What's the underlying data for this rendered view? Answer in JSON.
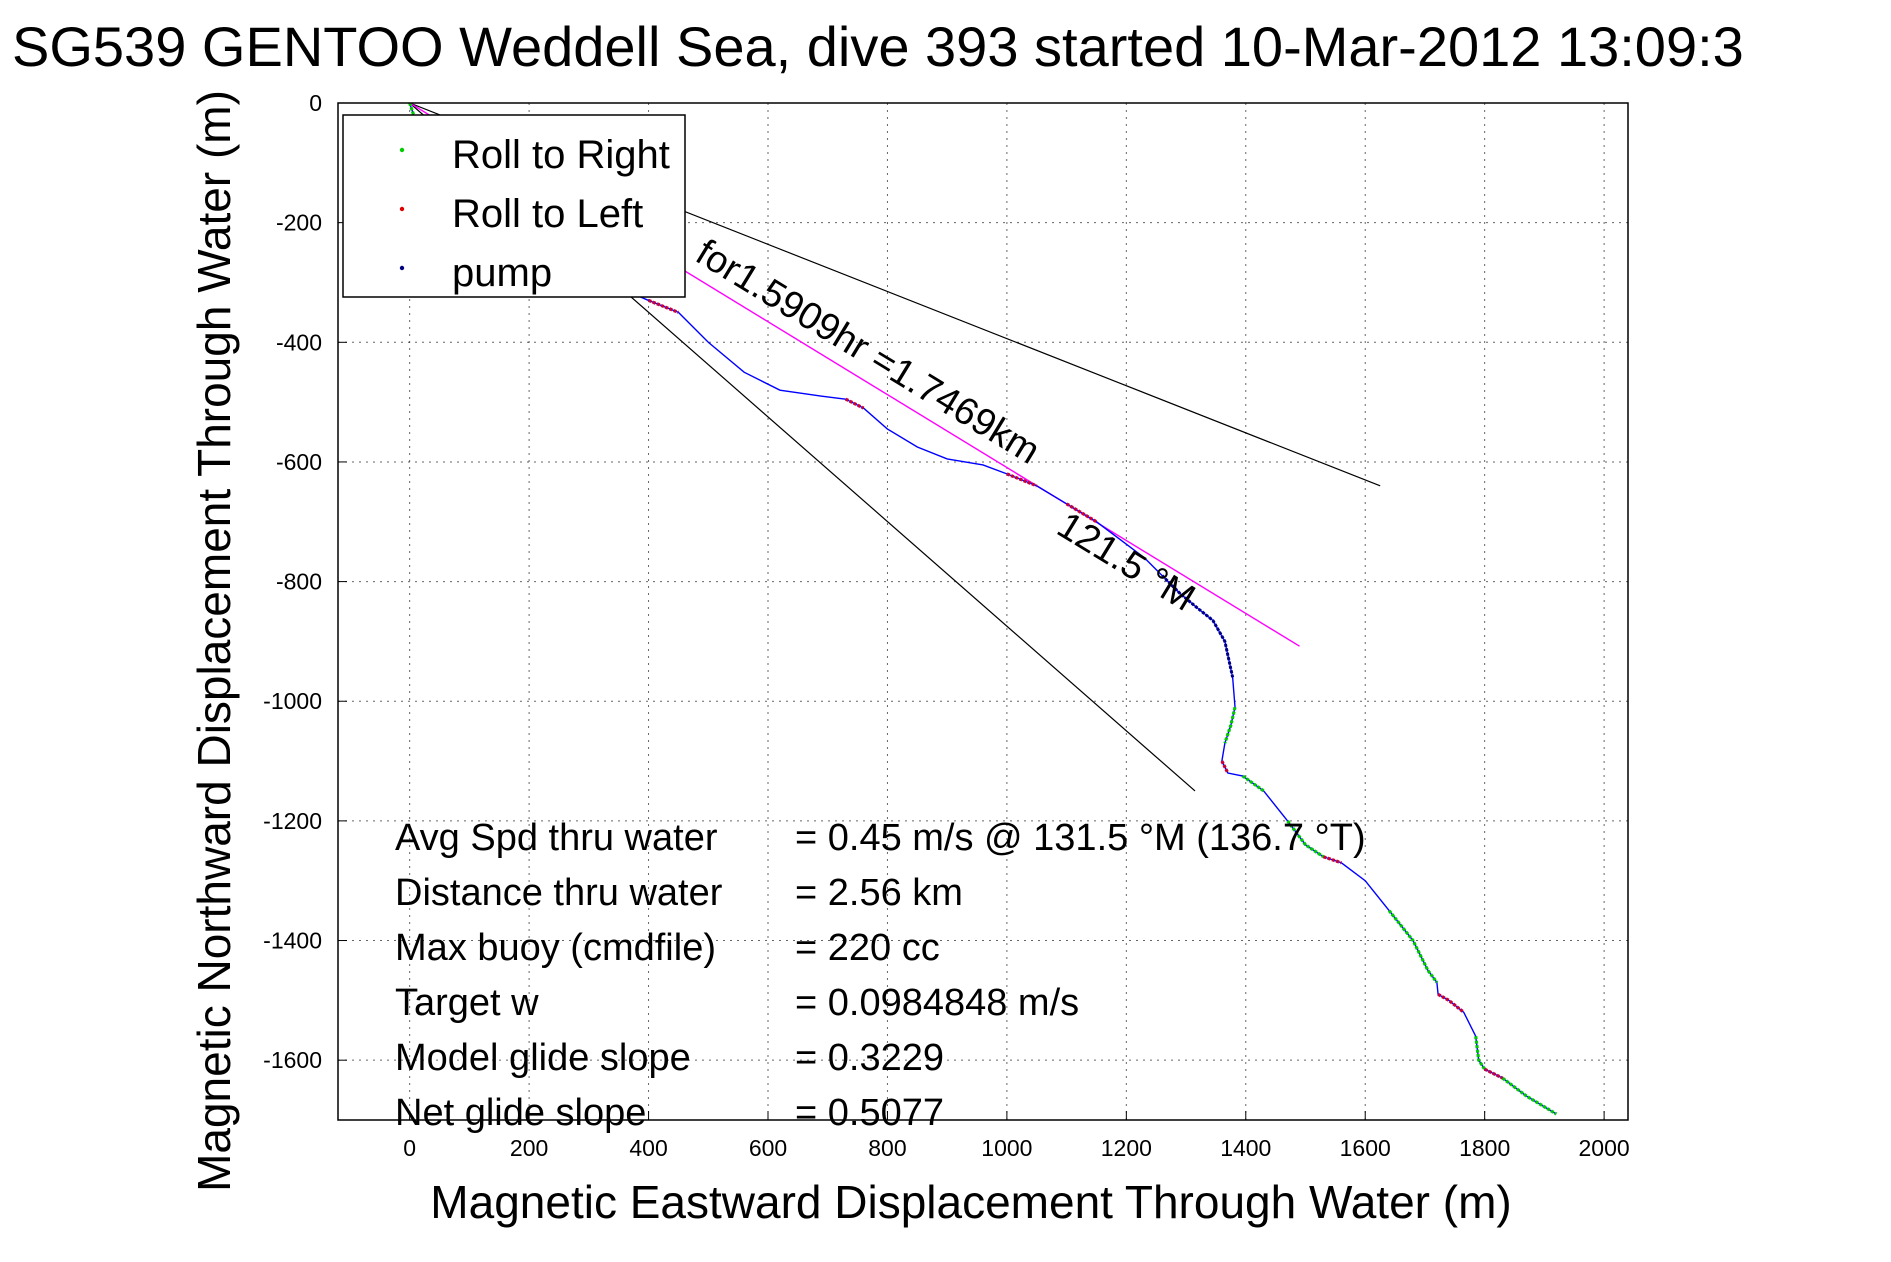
{
  "chart_data": {
    "type": "line",
    "title": "SG539 GENTOO Weddell Sea, dive 393 started 10-Mar-2012 13:09:3",
    "xlabel": "Magnetic Eastward Displacement Through Water (m)",
    "ylabel": "Magnetic Northward Displacement Through Water (m)",
    "xlim": [
      -120,
      2040
    ],
    "ylim": [
      -1700,
      0
    ],
    "xticks": [
      0,
      200,
      400,
      600,
      800,
      1000,
      1200,
      1400,
      1600,
      1800,
      2000
    ],
    "yticks": [
      0,
      -200,
      -400,
      -600,
      -800,
      -1000,
      -1200,
      -1400,
      -1600
    ],
    "grid": true,
    "legend": {
      "placement": "top-left",
      "entries": [
        {
          "name": "Roll to Right",
          "color": "#00cc00"
        },
        {
          "name": "Roll to Left",
          "color": "#dd0000"
        },
        {
          "name": "pump",
          "color": "#000080"
        }
      ]
    },
    "colors": {
      "track": "#0000ff",
      "right": "#00cc00",
      "left": "#cc0033",
      "pump": "#000080",
      "avg_line": "#ff00ff",
      "cone": "#000000"
    },
    "track": {
      "x": [
        0,
        10,
        30,
        80,
        150,
        240,
        330,
        400,
        450,
        500,
        560,
        620,
        690,
        730,
        760,
        800,
        850,
        900,
        960,
        1000,
        1050,
        1100,
        1150,
        1190,
        1230,
        1260,
        1290,
        1320,
        1345,
        1365,
        1378,
        1382,
        1375,
        1365,
        1360,
        1370,
        1395,
        1430,
        1470,
        1500,
        1530,
        1560,
        1600,
        1640,
        1680,
        1705,
        1720,
        1722,
        1740,
        1765,
        1785,
        1790,
        1800,
        1830,
        1870,
        1920
      ],
      "y": [
        0,
        -30,
        -70,
        -130,
        -190,
        -250,
        -300,
        -330,
        -350,
        -400,
        -450,
        -480,
        -490,
        -495,
        -510,
        -545,
        -575,
        -595,
        -605,
        -620,
        -640,
        -670,
        -700,
        -730,
        -760,
        -790,
        -820,
        -845,
        -865,
        -900,
        -960,
        -1010,
        -1040,
        -1070,
        -1100,
        -1120,
        -1125,
        -1150,
        -1200,
        -1240,
        -1260,
        -1270,
        -1300,
        -1350,
        -1400,
        -1450,
        -1470,
        -1490,
        -1500,
        -1520,
        -1560,
        -1600,
        -1615,
        -1630,
        -1660,
        -1690
      ],
      "roll_right_segments": [
        [
          0,
          2
        ],
        [
          31,
          33
        ],
        [
          36,
          37
        ],
        [
          38,
          40
        ],
        [
          43,
          46
        ],
        [
          50,
          52
        ],
        [
          53,
          55
        ]
      ],
      "roll_left_segments": [
        [
          7,
          8
        ],
        [
          13,
          14
        ],
        [
          19,
          20
        ],
        [
          21,
          22
        ],
        [
          34,
          35
        ],
        [
          40,
          41
        ],
        [
          47,
          49
        ],
        [
          52,
          53
        ]
      ],
      "pump_segments": [
        [
          25,
          30
        ]
      ]
    },
    "average_line": {
      "x": [
        0,
        1490
      ],
      "y": [
        0,
        -908
      ]
    },
    "cone_lines": [
      {
        "x": [
          0,
          1625
        ],
        "y": [
          0,
          -640
        ]
      },
      {
        "x": [
          0,
          1315
        ],
        "y": [
          0,
          -1150
        ]
      }
    ],
    "line_labels": [
      {
        "text": "for1.5909hr =1.7469km",
        "x": 475,
        "y": -262,
        "angle": 31.4
      },
      {
        "text": "121.5 °M",
        "x": 1080,
        "y": -718,
        "angle": 31.4
      }
    ],
    "stats": [
      {
        "label": "Avg Spd thru water",
        "value": "=  0.45 m/s @ 131.5 °M (136.7 °T)"
      },
      {
        "label": "Distance thru water",
        "value": "=  2.56 km"
      },
      {
        "label": "Max buoy (cmdfile)",
        "value": "= 220 cc"
      },
      {
        "label": "Target w",
        "value": "= 0.0984848 m/s"
      },
      {
        "label": "Model glide slope",
        "value": "= 0.3229"
      },
      {
        "label": "Net glide slope",
        "value": "= 0.5077"
      }
    ]
  }
}
